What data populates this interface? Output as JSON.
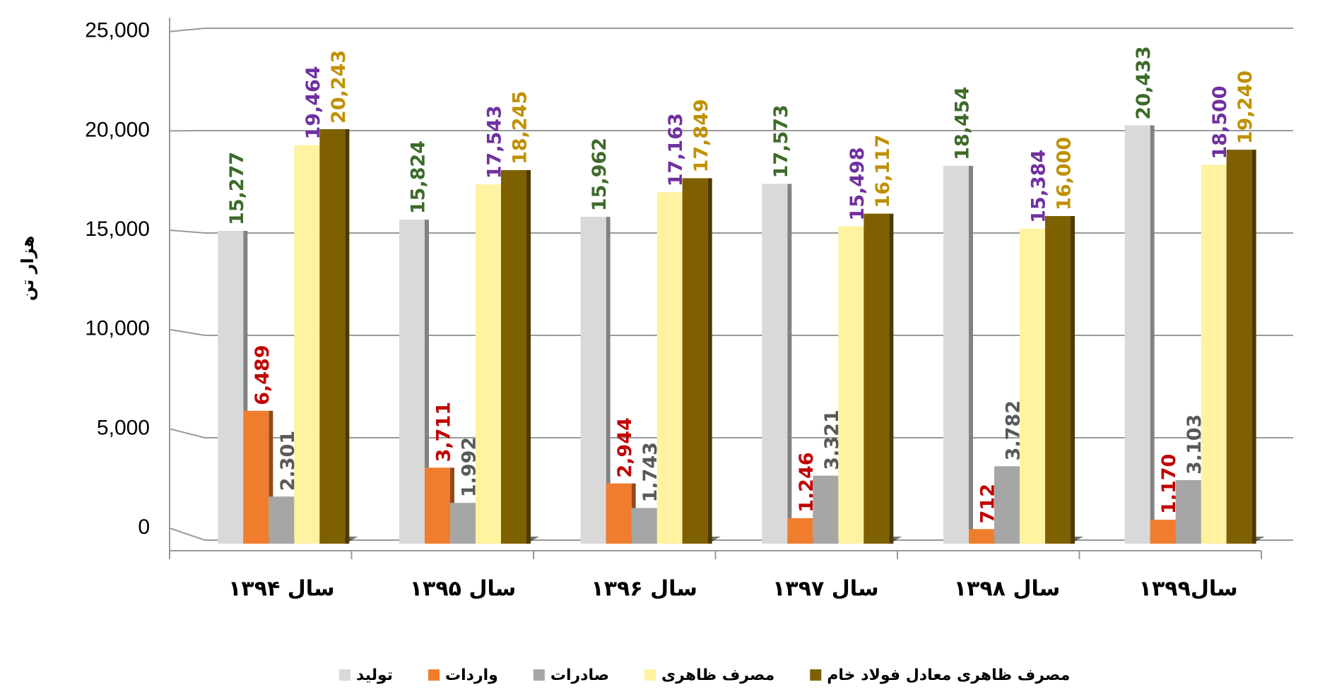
{
  "chart_data": {
    "type": "bar",
    "y_label": "هزار تن",
    "categories": [
      "سال ۱۳۹۴",
      "سال ۱۳۹۵",
      "سال ۱۳۹۶",
      "سال ۱۳۹۷",
      "سال ۱۳۹۸",
      "سال۱۳۹۹"
    ],
    "series": [
      {
        "name": "تولید",
        "color": "#d9d9d9",
        "label_color": "#3d6b2a",
        "values": [
          15277,
          15824,
          15962,
          17573,
          18454,
          20433
        ],
        "value_labels": [
          "15,277",
          "15,824",
          "15,962",
          "17,573",
          "18,454",
          "20,433"
        ]
      },
      {
        "name": "واردات",
        "color": "#f07d2e",
        "label_color": "#c00000",
        "values": [
          6489,
          3711,
          2944,
          1246,
          712,
          1170
        ],
        "value_labels": [
          "6,489",
          "3,711",
          "2,944",
          "1,246",
          "712",
          "1,170"
        ]
      },
      {
        "name": "صادرات",
        "color": "#a6a6a6",
        "label_color": "#595959",
        "values": [
          2301,
          1992,
          1743,
          3321,
          3782,
          3103
        ],
        "value_labels": [
          "2,301",
          "1,992",
          "1,743",
          "3,321",
          "3,782",
          "3,103"
        ]
      },
      {
        "name": "مصرف ظاهری",
        "color": "#fff2a0",
        "label_color": "#7030a0",
        "values": [
          19464,
          17543,
          17163,
          15498,
          15384,
          18500
        ],
        "value_labels": [
          "19,464",
          "17,543",
          "17,163",
          "15,498",
          "15,384",
          "18,500"
        ]
      },
      {
        "name": "مصرف ظاهری معادل فولاد خام",
        "color": "#7f6000",
        "label_color": "#c09000",
        "values": [
          20243,
          18245,
          17849,
          16117,
          16000,
          19240
        ],
        "value_labels": [
          "20,243",
          "18,245",
          "17,849",
          "16,117",
          "16,000",
          "19,240"
        ]
      }
    ],
    "ylim": [
      0,
      25000
    ],
    "yticks": [
      0,
      {
        "value": 5000,
        "label": "5,000"
      },
      {
        "value": 10000,
        "label": "10,000"
      },
      {
        "value": 15000,
        "label": "15,000"
      },
      {
        "value": 20000,
        "label": "20,000"
      },
      {
        "value": 25000,
        "label": "25,000"
      }
    ],
    "grid": true,
    "legend": "bottom"
  }
}
